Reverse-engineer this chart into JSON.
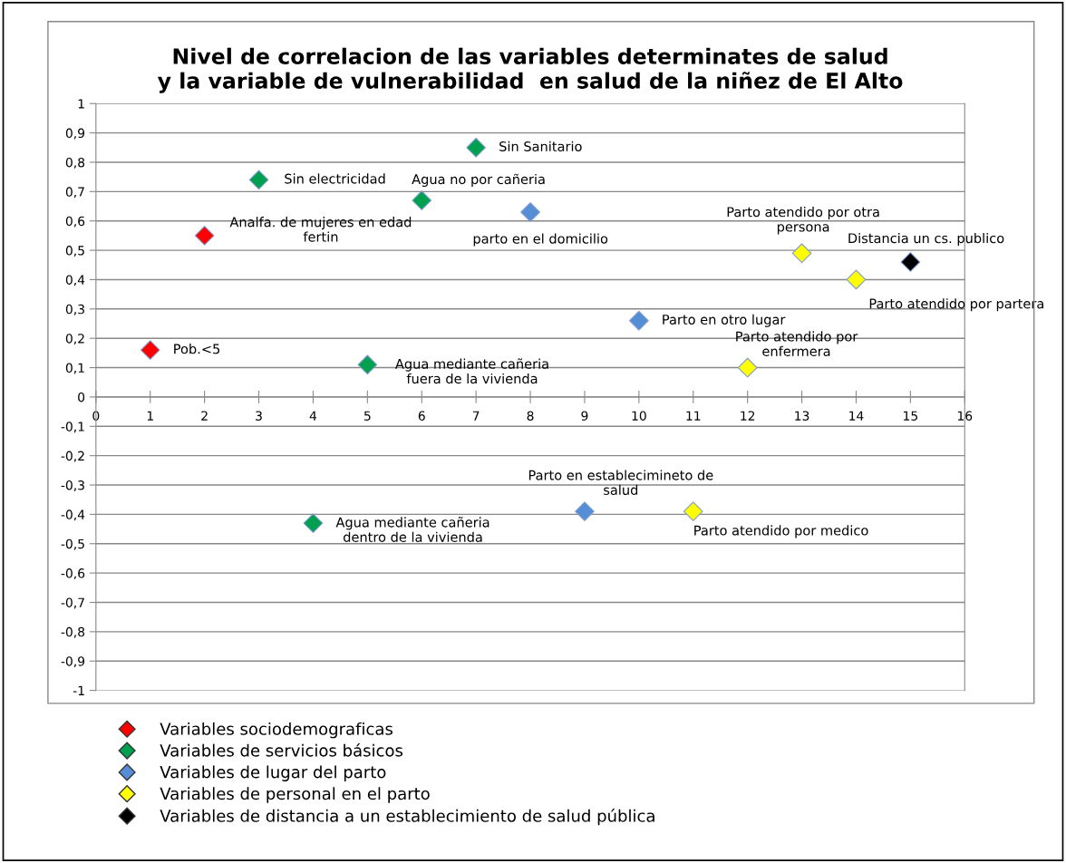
{
  "chart_data": {
    "type": "scatter",
    "title": "Nivel de correlacion de las variables determinates de salud\ny la variable de vulnerabilidad  en salud de la niñez de El Alto",
    "series": [
      {
        "name": "Variables sociodemograficas",
        "color": "#ff0000",
        "x": [
          1,
          2
        ],
        "values": [
          0.16,
          0.55
        ]
      },
      {
        "name": "Variables de servicios básicos",
        "color": "#00a050",
        "x": [
          3,
          4,
          5,
          6,
          7
        ],
        "values": [
          0.74,
          -0.43,
          0.11,
          0.67,
          0.85
        ]
      },
      {
        "name": "Variables de lugar del parto",
        "color": "#558ed5",
        "x": [
          8,
          9,
          10
        ],
        "values": [
          0.63,
          -0.39,
          0.26
        ]
      },
      {
        "name": "Variables de personal en el parto",
        "color": "#ffff00",
        "x": [
          11,
          12,
          13,
          14
        ],
        "values": [
          -0.39,
          0.1,
          0.49,
          0.4
        ]
      },
      {
        "name": "Variables de distancia a un establecimiento de salud pública",
        "color": "#000000",
        "x": [
          15
        ],
        "values": [
          0.46
        ]
      }
    ],
    "annotations": [
      {
        "text": "Pob.<5",
        "x": 1,
        "y": 0.16
      },
      {
        "text": "Analfa. de mujeres en edad\nfertin",
        "x": 2,
        "y": 0.55
      },
      {
        "text": "Sin electricidad",
        "x": 3,
        "y": 0.74
      },
      {
        "text": "Agua mediante cañeria\ndentro de la vivienda",
        "x": 4,
        "y": -0.43
      },
      {
        "text": "Agua mediante cañeria\nfuera de la vivienda",
        "x": 5,
        "y": 0.11
      },
      {
        "text": "Agua no por cañeria",
        "x": 6,
        "y": 0.67
      },
      {
        "text": "Sin Sanitario",
        "x": 7,
        "y": 0.85
      },
      {
        "text": "parto en el domicilio",
        "x": 8,
        "y": 0.63
      },
      {
        "text": "Parto en establecimineto de\nsalud",
        "x": 9,
        "y": -0.39
      },
      {
        "text": "Parto en otro lugar",
        "x": 10,
        "y": 0.26
      },
      {
        "text": "Parto atendido por medico",
        "x": 11,
        "y": -0.39
      },
      {
        "text": "Parto atendido por\nenfermera",
        "x": 12,
        "y": 0.1
      },
      {
        "text": "Parto atendido por otra\npersona",
        "x": 13,
        "y": 0.49
      },
      {
        "text": "Parto atendido por partera",
        "x": 14,
        "y": 0.4
      },
      {
        "text": "Distancia un cs. publico",
        "x": 15,
        "y": 0.46
      }
    ],
    "xlim": [
      0,
      16
    ],
    "xticks": [
      0,
      1,
      2,
      3,
      4,
      5,
      6,
      7,
      8,
      9,
      10,
      11,
      12,
      13,
      14,
      15,
      16
    ],
    "ylim": [
      -1,
      1
    ],
    "yticks": [
      {
        "value": -1,
        "label": "-1"
      },
      {
        "value": -0.9,
        "label": "-0,9"
      },
      {
        "value": -0.8,
        "label": "-0,8"
      },
      {
        "value": -0.7,
        "label": "-0,7"
      },
      {
        "value": -0.6,
        "label": "-0,6"
      },
      {
        "value": -0.5,
        "label": "-0,5"
      },
      {
        "value": -0.4,
        "label": "-0,4"
      },
      {
        "value": -0.3,
        "label": "-0,3"
      },
      {
        "value": -0.2,
        "label": "-0,2"
      },
      {
        "value": -0.1,
        "label": "-0,1"
      },
      {
        "value": 0,
        "label": "0"
      },
      {
        "value": 0.1,
        "label": "0,1"
      },
      {
        "value": 0.2,
        "label": "0,2"
      },
      {
        "value": 0.3,
        "label": "0,3"
      },
      {
        "value": 0.4,
        "label": "0,4"
      },
      {
        "value": 0.5,
        "label": "0,5"
      },
      {
        "value": 0.6,
        "label": "0,6"
      },
      {
        "value": 0.7,
        "label": "0,7"
      },
      {
        "value": 0.8,
        "label": "0,8"
      },
      {
        "value": 0.9,
        "label": "0,9"
      },
      {
        "value": 1,
        "label": "1"
      }
    ],
    "grid": "y",
    "legend": "bottom",
    "marker": "diamond"
  }
}
